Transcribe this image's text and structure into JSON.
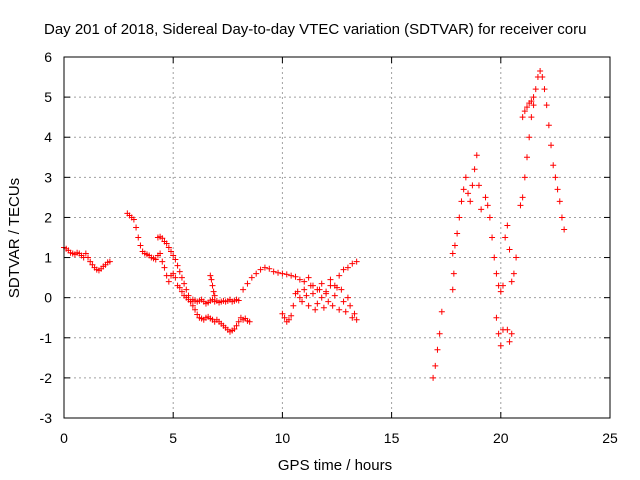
{
  "chart_data": {
    "type": "scatter",
    "title": "Day 201 of 2018, Sidereal Day-to-day VTEC variation (SDTVAR) for receiver coru",
    "xlabel": "GPS time / hours",
    "ylabel": "SDTVAR / TECUs",
    "xlim": [
      0,
      25
    ],
    "ylim": [
      -3,
      6
    ],
    "xticks": [
      0,
      5,
      10,
      15,
      20,
      25
    ],
    "yticks": [
      -3,
      -2,
      -1,
      0,
      1,
      2,
      3,
      4,
      5,
      6
    ],
    "xtick_labels": [
      "0",
      "5",
      "10",
      "15",
      "20",
      "25"
    ],
    "ytick_labels": [
      "-3",
      "-2",
      "-1",
      "0",
      "1",
      "2",
      "3",
      "4",
      "5",
      "6"
    ],
    "grid": true,
    "marker": "plus",
    "color": "#ff0000",
    "series": [
      {
        "name": "segment-1",
        "x": [
          0.0,
          0.1,
          0.2,
          0.3,
          0.4,
          0.5,
          0.6,
          0.7,
          0.8,
          0.9,
          1.0,
          1.1,
          1.2,
          1.3,
          1.4,
          1.5,
          1.6,
          1.7,
          1.8,
          1.9,
          2.0,
          2.1
        ],
        "y": [
          1.25,
          1.22,
          1.18,
          1.12,
          1.1,
          1.08,
          1.12,
          1.1,
          1.05,
          1.0,
          1.1,
          1.0,
          0.9,
          0.82,
          0.75,
          0.7,
          0.68,
          0.72,
          0.78,
          0.82,
          0.88,
          0.9
        ]
      },
      {
        "name": "segment-2",
        "x": [
          2.9,
          3.0,
          3.1,
          3.2,
          3.3,
          3.4,
          3.5,
          3.6,
          3.7,
          3.8,
          3.9,
          4.0,
          4.1,
          4.2,
          4.3,
          4.4,
          4.5,
          4.6,
          4.7,
          4.8,
          4.9,
          5.0,
          5.1,
          5.2,
          5.3,
          5.4,
          5.5,
          5.6,
          5.7,
          5.8,
          5.9,
          6.0,
          6.1,
          6.2,
          6.3,
          6.4,
          6.5,
          6.6,
          6.7,
          6.8,
          6.9,
          7.0,
          7.1,
          7.2,
          7.3,
          7.4,
          7.5,
          7.6,
          7.7,
          7.8,
          7.9,
          8.0
        ],
        "y": [
          2.1,
          2.05,
          2.0,
          1.95,
          1.75,
          1.5,
          1.3,
          1.15,
          1.1,
          1.08,
          1.05,
          1.0,
          0.98,
          0.95,
          1.05,
          1.1,
          0.9,
          0.75,
          0.55,
          0.4,
          0.55,
          0.6,
          0.5,
          0.3,
          0.25,
          0.15,
          0.05,
          0.0,
          -0.05,
          -0.1,
          -0.05,
          -0.08,
          -0.1,
          -0.08,
          -0.05,
          -0.1,
          -0.15,
          -0.12,
          -0.08,
          -0.05,
          -0.1,
          -0.08,
          -0.12,
          -0.1,
          -0.08,
          -0.1,
          -0.08,
          -0.05,
          -0.1,
          -0.08,
          -0.05,
          -0.07
        ]
      },
      {
        "name": "segment-3",
        "x": [
          4.3,
          4.4,
          4.5,
          4.6,
          4.7,
          4.8,
          4.9,
          5.0,
          5.1,
          5.2,
          5.3,
          5.4,
          5.5,
          5.6,
          5.7,
          5.8,
          5.9,
          6.0,
          6.1,
          6.2,
          6.3,
          6.4,
          6.5,
          6.6,
          6.7,
          6.8,
          6.9,
          7.0,
          7.1,
          7.2,
          7.3,
          7.4,
          7.5,
          7.6,
          7.7,
          7.8,
          7.9,
          8.0,
          8.1,
          8.2,
          8.3,
          8.4,
          8.5
        ],
        "y": [
          1.5,
          1.52,
          1.48,
          1.4,
          1.35,
          1.25,
          1.15,
          1.05,
          0.95,
          0.8,
          0.65,
          0.5,
          0.35,
          0.2,
          0.05,
          -0.1,
          -0.2,
          -0.3,
          -0.42,
          -0.5,
          -0.52,
          -0.55,
          -0.5,
          -0.48,
          -0.52,
          -0.55,
          -0.6,
          -0.55,
          -0.6,
          -0.65,
          -0.7,
          -0.75,
          -0.8,
          -0.85,
          -0.82,
          -0.78,
          -0.7,
          -0.6,
          -0.5,
          -0.55,
          -0.52,
          -0.58,
          -0.6
        ]
      },
      {
        "name": "segment-4",
        "x": [
          6.7,
          6.75,
          6.8,
          6.85,
          6.9
        ],
        "y": [
          0.55,
          0.45,
          0.3,
          0.15,
          0.05
        ]
      },
      {
        "name": "segment-5",
        "x": [
          8.2,
          8.4,
          8.6,
          8.8,
          9.0,
          9.2,
          9.4,
          9.6,
          9.8,
          10.0,
          10.2,
          10.4,
          10.6,
          10.8,
          11.0,
          11.2,
          11.4,
          11.6,
          11.8,
          12.0,
          12.2,
          12.4,
          12.6,
          12.8,
          13.0,
          13.2,
          13.4
        ],
        "y": [
          0.2,
          0.35,
          0.5,
          0.6,
          0.7,
          0.75,
          0.72,
          0.65,
          0.62,
          0.6,
          0.58,
          0.55,
          0.52,
          0.45,
          0.4,
          0.5,
          0.3,
          0.2,
          0.35,
          0.1,
          0.45,
          0.3,
          0.55,
          0.7,
          0.75,
          0.85,
          0.9
        ]
      },
      {
        "name": "segment-6",
        "x": [
          10.0,
          10.1,
          10.2,
          10.3,
          10.4,
          10.5,
          10.6,
          10.7,
          10.8,
          10.9,
          11.0,
          11.1,
          11.2,
          11.3,
          11.4,
          11.5,
          11.6,
          11.7,
          11.8,
          11.9,
          12.0,
          12.1,
          12.2,
          12.3,
          12.4,
          12.5,
          12.6,
          12.7,
          12.8,
          12.9,
          13.0,
          13.1,
          13.2,
          13.3,
          13.4
        ],
        "y": [
          -0.4,
          -0.5,
          -0.6,
          -0.55,
          -0.45,
          -0.2,
          0.1,
          0.15,
          0.0,
          -0.1,
          0.2,
          0.05,
          -0.2,
          0.3,
          0.1,
          -0.3,
          -0.15,
          0.2,
          0.0,
          -0.25,
          0.15,
          -0.1,
          0.3,
          -0.2,
          0.05,
          0.25,
          -0.3,
          0.2,
          -0.1,
          -0.35,
          0.0,
          -0.2,
          -0.5,
          -0.4,
          -0.55
        ]
      },
      {
        "name": "segment-7",
        "x": [
          16.9,
          17.0,
          17.1,
          17.2,
          17.3
        ],
        "y": [
          -2.0,
          -1.7,
          -1.3,
          -0.9,
          -0.35
        ]
      },
      {
        "name": "segment-8",
        "x": [
          17.8,
          17.9,
          18.0,
          18.1,
          18.2,
          18.3,
          18.4,
          18.5,
          18.6,
          18.7,
          18.8,
          18.9,
          19.0,
          19.1
        ],
        "y": [
          1.1,
          1.3,
          1.6,
          2.0,
          2.4,
          2.7,
          3.0,
          2.6,
          2.4,
          2.8,
          3.2,
          3.55,
          2.8,
          2.2
        ]
      },
      {
        "name": "segment-9",
        "x": [
          17.8,
          17.85
        ],
        "y": [
          0.2,
          0.6
        ]
      },
      {
        "name": "segment-10",
        "x": [
          19.3,
          19.4,
          19.5,
          19.6,
          19.7,
          19.8,
          19.9,
          20.0,
          20.1
        ],
        "y": [
          2.5,
          2.3,
          2.0,
          1.5,
          1.0,
          0.6,
          0.3,
          0.15,
          0.3
        ]
      },
      {
        "name": "segment-11",
        "x": [
          19.8,
          19.9,
          20.0,
          20.1
        ],
        "y": [
          -0.5,
          -0.9,
          -1.2,
          -0.8
        ]
      },
      {
        "name": "segment-12",
        "x": [
          20.2,
          20.3,
          20.4,
          20.5,
          20.6,
          20.7
        ],
        "y": [
          1.5,
          1.8,
          1.2,
          0.4,
          0.6,
          1.0
        ]
      },
      {
        "name": "segment-13",
        "x": [
          20.3,
          20.4,
          20.5
        ],
        "y": [
          -0.8,
          -1.1,
          -0.9
        ]
      },
      {
        "name": "segment-14",
        "x": [
          20.9,
          21.0,
          21.1,
          21.2,
          21.3,
          21.4,
          21.5,
          21.6,
          21.7,
          21.8,
          21.9,
          22.0,
          22.1,
          22.2,
          22.3,
          22.4,
          22.5,
          22.6,
          22.7,
          22.8,
          22.9
        ],
        "y": [
          2.3,
          2.5,
          3.0,
          3.5,
          4.0,
          4.5,
          4.8,
          5.2,
          5.5,
          5.65,
          5.5,
          5.2,
          4.8,
          4.3,
          3.8,
          3.3,
          3.0,
          2.7,
          2.4,
          2.0,
          1.7
        ]
      },
      {
        "name": "segment-15",
        "x": [
          21.0,
          21.1,
          21.2,
          21.3,
          21.4,
          21.5
        ],
        "y": [
          4.5,
          4.65,
          4.75,
          4.85,
          4.9,
          5.0
        ]
      }
    ]
  }
}
